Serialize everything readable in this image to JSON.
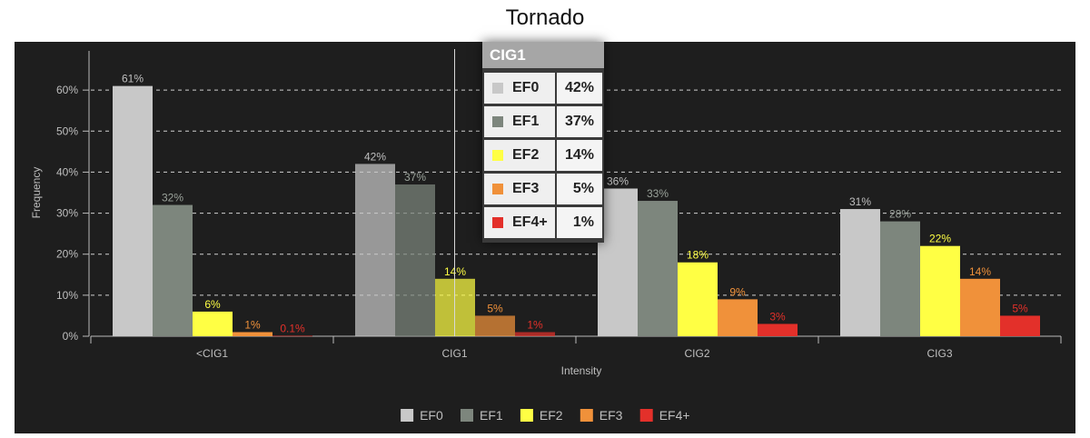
{
  "chart_data": {
    "type": "bar",
    "title": "Tornado",
    "xlabel": "Intensity",
    "ylabel": "Frequency",
    "ylim": [
      0,
      70
    ],
    "yticks": [
      0,
      10,
      20,
      30,
      40,
      50,
      60
    ],
    "ytick_labels": [
      "0%",
      "10%",
      "20%",
      "30%",
      "40%",
      "50%",
      "60%"
    ],
    "grid": true,
    "legend_position": "bottom-center",
    "categories": [
      "<CIG1",
      "CIG1",
      "CIG2",
      "CIG3"
    ],
    "series": [
      {
        "name": "EF0",
        "color": "#c8c8c8",
        "values": [
          61,
          42,
          36,
          31
        ],
        "labels": [
          "61%",
          "42%",
          "36%",
          "31%"
        ]
      },
      {
        "name": "EF1",
        "color": "#7d867d",
        "values": [
          32,
          37,
          33,
          28
        ],
        "labels": [
          "32%",
          "37%",
          "33%",
          "28%"
        ]
      },
      {
        "name": "EF2",
        "color": "#ffff44",
        "values": [
          6,
          14,
          18,
          22
        ],
        "labels": [
          "6%",
          "14%",
          "18%",
          "22%"
        ]
      },
      {
        "name": "EF3",
        "color": "#f0913a",
        "values": [
          1,
          5,
          9,
          14
        ],
        "labels": [
          "1%",
          "5%",
          "9%",
          "14%"
        ]
      },
      {
        "name": "EF4+",
        "color": "#e3302a",
        "values": [
          0.1,
          1,
          3,
          5
        ],
        "labels": [
          "0.1%",
          "1%",
          "3%",
          "5%"
        ]
      }
    ],
    "highlighted_category_index": 1
  },
  "tooltip": {
    "header": "CIG1",
    "rows": [
      {
        "name": "EF0",
        "color": "#c8c8c8",
        "value": "42%"
      },
      {
        "name": "EF1",
        "color": "#7d867d",
        "value": "37%"
      },
      {
        "name": "EF2",
        "color": "#ffff44",
        "value": "14%"
      },
      {
        "name": "EF3",
        "color": "#f0913a",
        "value": "5%"
      },
      {
        "name": "EF4+",
        "color": "#e3302a",
        "value": "1%"
      }
    ]
  }
}
